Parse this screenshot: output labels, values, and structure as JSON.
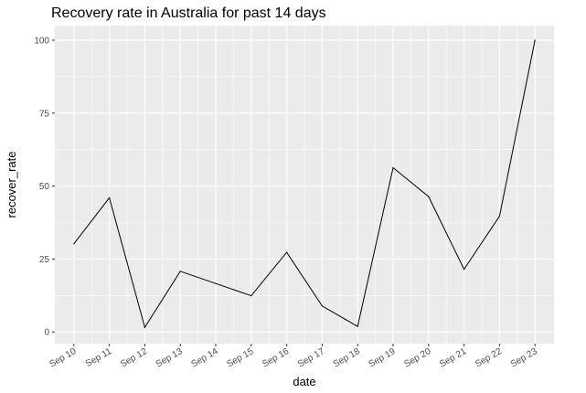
{
  "chart_data": {
    "type": "line",
    "title": "Recovery rate in Australia for past 14 days",
    "xlabel": "date",
    "ylabel": "recover_rate",
    "categories": [
      "Sep 10",
      "Sep 11",
      "Sep 12",
      "Sep 13",
      "Sep 14",
      "Sep 15",
      "Sep 16",
      "Sep 17",
      "Sep 18",
      "Sep 19",
      "Sep 20",
      "Sep 21",
      "Sep 22",
      "Sep 23"
    ],
    "values": [
      30.2,
      46,
      1.6,
      20.8,
      16.6,
      12.4,
      27.3,
      8.9,
      1.9,
      56.3,
      46.4,
      21.5,
      39.7,
      100
    ],
    "yticks": [
      "0",
      "25",
      "50",
      "75",
      "100"
    ],
    "ytick_values": [
      0,
      25,
      50,
      75,
      100
    ],
    "ylim": [
      -4,
      105
    ],
    "grid": true,
    "colors": {
      "panel": "#ebebeb",
      "grid": "#ffffff",
      "line": "#000000"
    }
  }
}
